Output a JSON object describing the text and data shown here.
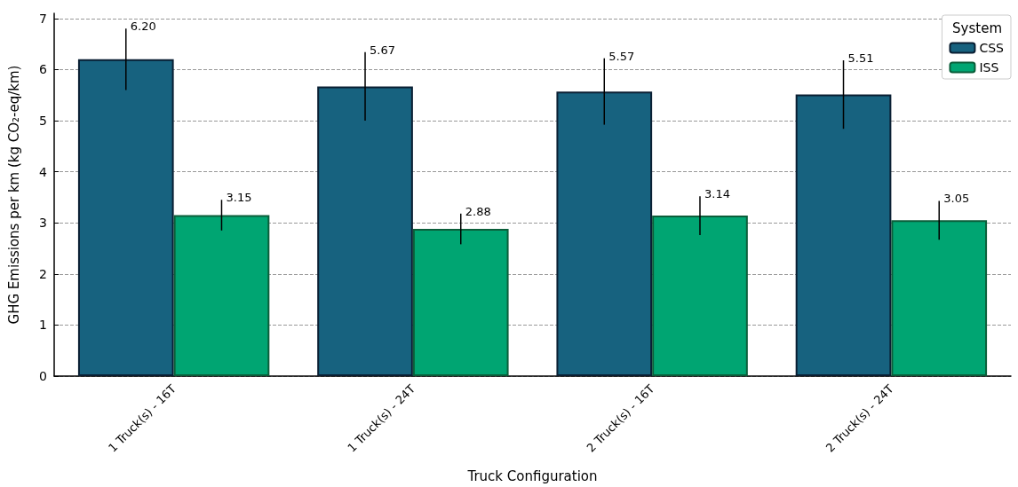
{
  "chart_data": {
    "type": "bar",
    "categories": [
      "1 Truck(s) - 16T",
      "1 Truck(s) - 24T",
      "2 Truck(s) - 16T",
      "2 Truck(s) - 24T"
    ],
    "series": [
      {
        "name": "CSS",
        "color": "#17627f",
        "values": [
          6.2,
          5.67,
          5.57,
          5.51
        ],
        "errors": [
          0.6,
          0.67,
          0.65,
          0.67
        ],
        "value_labels": [
          "6.20",
          "5.67",
          "5.57",
          "5.51"
        ]
      },
      {
        "name": "ISS",
        "color": "#00a572",
        "values": [
          3.15,
          2.88,
          3.14,
          3.05
        ],
        "errors": [
          0.3,
          0.3,
          0.38,
          0.38
        ],
        "value_labels": [
          "3.15",
          "2.88",
          "3.14",
          "3.05"
        ]
      }
    ],
    "xlabel": "Truck Configuration",
    "ylabel": "GHG Emissions per km (kg CO₂-eq/km)",
    "legend_title": "System",
    "legend": "top right",
    "ylim": [
      0,
      7.1
    ],
    "yticks": [
      0,
      1,
      2,
      3,
      4,
      5,
      6,
      7
    ],
    "grid": "y"
  }
}
